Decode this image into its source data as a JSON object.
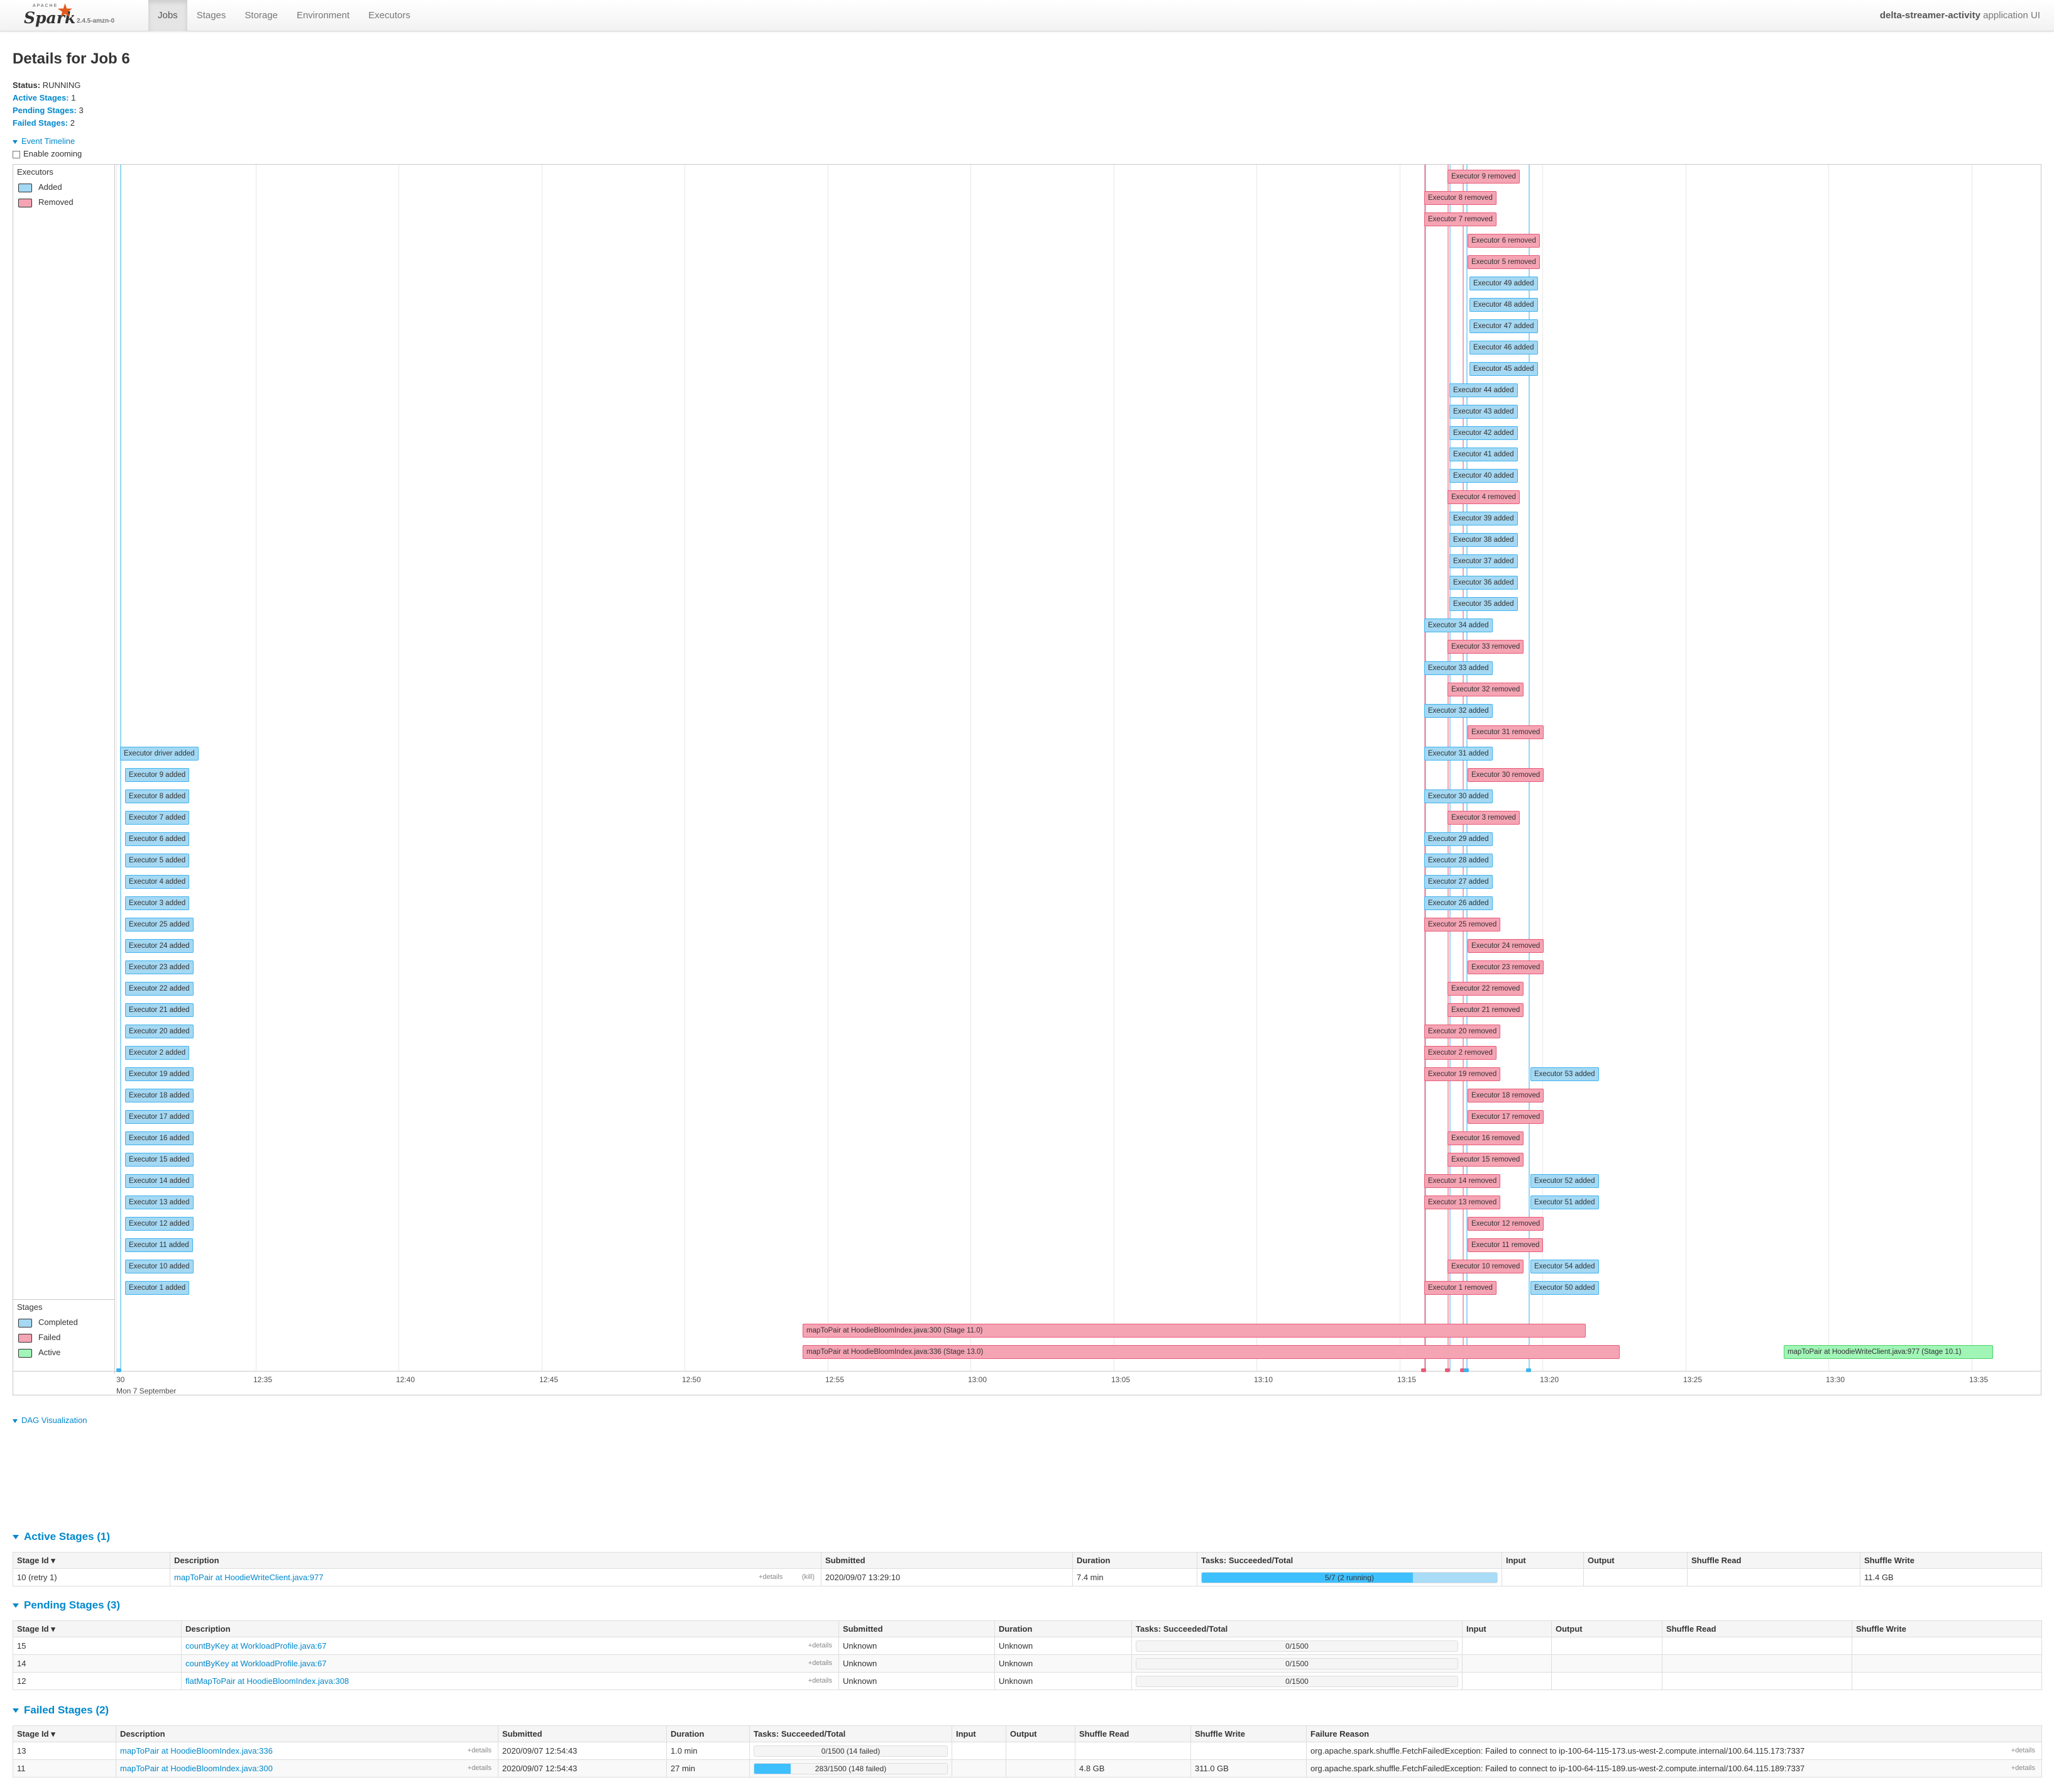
{
  "nav": {
    "brand": "Spark",
    "apache": "APACHE",
    "version": "2.4.5-amzn-0",
    "tabs": [
      "Jobs",
      "Stages",
      "Storage",
      "Environment",
      "Executors"
    ],
    "active_tab": "Jobs",
    "app_name": "delta-streamer-activity",
    "app_suffix": " application UI"
  },
  "page": {
    "title": "Details for Job 6",
    "status_label": "Status:",
    "status": "RUNNING",
    "active_label": "Active Stages:",
    "active": "1",
    "pending_label": "Pending Stages:",
    "pending": "3",
    "failed_label": "Failed Stages:",
    "failed": "2"
  },
  "timeline": {
    "toggle": "Event Timeline",
    "zoom_label": "Enable zooming",
    "executors_title": "Executors",
    "legend_added": "Added",
    "legend_removed": "Removed",
    "stages_title": "Stages",
    "legend_completed": "Completed",
    "legend_failed": "Failed",
    "legend_active": "Active",
    "ticks": [
      "30",
      "12:35",
      "12:40",
      "12:45",
      "12:50",
      "12:55",
      "13:00",
      "13:05",
      "13:10",
      "13:15",
      "13:20",
      "13:25",
      "13:30",
      "13:35"
    ],
    "day_label": "Mon 7 September",
    "events": [
      {
        "text": "Executor 9 removed",
        "type": "rem",
        "col": "c2",
        "row": 0
      },
      {
        "text": "Executor 8 removed",
        "type": "rem",
        "col": "c1",
        "row": 1
      },
      {
        "text": "Executor 7 removed",
        "type": "rem",
        "col": "c1",
        "row": 2
      },
      {
        "text": "Executor 6 removed",
        "type": "rem",
        "col": "c3",
        "row": 3
      },
      {
        "text": "Executor 5 removed",
        "type": "rem",
        "col": "c3",
        "row": 4
      },
      {
        "text": "Executor 49 added",
        "type": "add",
        "col": "c4",
        "row": 5
      },
      {
        "text": "Executor 48 added",
        "type": "add",
        "col": "c4",
        "row": 6
      },
      {
        "text": "Executor 47 added",
        "type": "add",
        "col": "c4",
        "row": 7
      },
      {
        "text": "Executor 46 added",
        "type": "add",
        "col": "c4",
        "row": 8
      },
      {
        "text": "Executor 45 added",
        "type": "add",
        "col": "c4",
        "row": 9
      },
      {
        "text": "Executor 44 added",
        "type": "add",
        "col": "c2b",
        "row": 10
      },
      {
        "text": "Executor 43 added",
        "type": "add",
        "col": "c2b",
        "row": 11
      },
      {
        "text": "Executor 42 added",
        "type": "add",
        "col": "c2b",
        "row": 12
      },
      {
        "text": "Executor 41 added",
        "type": "add",
        "col": "c2b",
        "row": 13
      },
      {
        "text": "Executor 40 added",
        "type": "add",
        "col": "c2b",
        "row": 14
      },
      {
        "text": "Executor 4 removed",
        "type": "rem",
        "col": "c2",
        "row": 15
      },
      {
        "text": "Executor 39 added",
        "type": "add",
        "col": "c2b",
        "row": 16
      },
      {
        "text": "Executor 38 added",
        "type": "add",
        "col": "c2b",
        "row": 17
      },
      {
        "text": "Executor 37 added",
        "type": "add",
        "col": "c2b",
        "row": 18
      },
      {
        "text": "Executor 36 added",
        "type": "add",
        "col": "c2b",
        "row": 19
      },
      {
        "text": "Executor 35 added",
        "type": "add",
        "col": "c2b",
        "row": 20
      },
      {
        "text": "Executor 34 added",
        "type": "add",
        "col": "c1",
        "row": 21
      },
      {
        "text": "Executor 33 removed",
        "type": "rem",
        "col": "c2",
        "row": 22
      },
      {
        "text": "Executor 33 added",
        "type": "add",
        "col": "c1",
        "row": 23
      },
      {
        "text": "Executor 32 removed",
        "type": "rem",
        "col": "c2",
        "row": 24
      },
      {
        "text": "Executor 32 added",
        "type": "add",
        "col": "c1",
        "row": 25
      },
      {
        "text": "Executor 31 removed",
        "type": "rem",
        "col": "c3",
        "row": 26
      },
      {
        "text": "Executor driver added",
        "type": "add",
        "col": "c0a",
        "row": 27
      },
      {
        "text": "Executor 31 added",
        "type": "add",
        "col": "c1",
        "row": 27
      },
      {
        "text": "Executor 9 added",
        "type": "add",
        "col": "c0",
        "row": 28
      },
      {
        "text": "Executor 30 removed",
        "type": "rem",
        "col": "c3",
        "row": 28
      },
      {
        "text": "Executor 8 added",
        "type": "add",
        "col": "c0",
        "row": 29
      },
      {
        "text": "Executor 30 added",
        "type": "add",
        "col": "c1",
        "row": 29
      },
      {
        "text": "Executor 7 added",
        "type": "add",
        "col": "c0",
        "row": 30
      },
      {
        "text": "Executor 3 removed",
        "type": "rem",
        "col": "c2",
        "row": 30
      },
      {
        "text": "Executor 6 added",
        "type": "add",
        "col": "c0",
        "row": 31
      },
      {
        "text": "Executor 29 added",
        "type": "add",
        "col": "c1",
        "row": 31
      },
      {
        "text": "Executor 5 added",
        "type": "add",
        "col": "c0",
        "row": 32
      },
      {
        "text": "Executor 28 added",
        "type": "add",
        "col": "c1",
        "row": 32
      },
      {
        "text": "Executor 4 added",
        "type": "add",
        "col": "c0",
        "row": 33
      },
      {
        "text": "Executor 27 added",
        "type": "add",
        "col": "c1",
        "row": 33
      },
      {
        "text": "Executor 3 added",
        "type": "add",
        "col": "c0",
        "row": 34
      },
      {
        "text": "Executor 26 added",
        "type": "add",
        "col": "c1",
        "row": 34
      },
      {
        "text": "Executor 25 added",
        "type": "add",
        "col": "c0",
        "row": 35
      },
      {
        "text": "Executor 25 removed",
        "type": "rem",
        "col": "c1",
        "row": 35
      },
      {
        "text": "Executor 24 added",
        "type": "add",
        "col": "c0",
        "row": 36
      },
      {
        "text": "Executor 24 removed",
        "type": "rem",
        "col": "c3",
        "row": 36
      },
      {
        "text": "Executor 23 added",
        "type": "add",
        "col": "c0",
        "row": 37
      },
      {
        "text": "Executor 23 removed",
        "type": "rem",
        "col": "c3",
        "row": 37
      },
      {
        "text": "Executor 22 added",
        "type": "add",
        "col": "c0",
        "row": 38
      },
      {
        "text": "Executor 22 removed",
        "type": "rem",
        "col": "c2",
        "row": 38
      },
      {
        "text": "Executor 21 added",
        "type": "add",
        "col": "c0",
        "row": 39
      },
      {
        "text": "Executor 21 removed",
        "type": "rem",
        "col": "c2",
        "row": 39
      },
      {
        "text": "Executor 20 added",
        "type": "add",
        "col": "c0",
        "row": 40
      },
      {
        "text": "Executor 20 removed",
        "type": "rem",
        "col": "c1",
        "row": 40
      },
      {
        "text": "Executor 2 added",
        "type": "add",
        "col": "c0",
        "row": 41
      },
      {
        "text": "Executor 2 removed",
        "type": "rem",
        "col": "c1",
        "row": 41
      },
      {
        "text": "Executor 19 added",
        "type": "add",
        "col": "c0",
        "row": 42
      },
      {
        "text": "Executor 19 removed",
        "type": "rem",
        "col": "c1",
        "row": 42
      },
      {
        "text": "Executor 53 added",
        "type": "add",
        "col": "c5",
        "row": 42
      },
      {
        "text": "Executor 18 added",
        "type": "add",
        "col": "c0",
        "row": 43
      },
      {
        "text": "Executor 18 removed",
        "type": "rem",
        "col": "c3",
        "row": 43
      },
      {
        "text": "Executor 17 added",
        "type": "add",
        "col": "c0",
        "row": 44
      },
      {
        "text": "Executor 17 removed",
        "type": "rem",
        "col": "c3",
        "row": 44
      },
      {
        "text": "Executor 16 added",
        "type": "add",
        "col": "c0",
        "row": 45
      },
      {
        "text": "Executor 16 removed",
        "type": "rem",
        "col": "c2",
        "row": 45
      },
      {
        "text": "Executor 15 added",
        "type": "add",
        "col": "c0",
        "row": 46
      },
      {
        "text": "Executor 15 removed",
        "type": "rem",
        "col": "c2",
        "row": 46
      },
      {
        "text": "Executor 14 added",
        "type": "add",
        "col": "c0",
        "row": 47
      },
      {
        "text": "Executor 14 removed",
        "type": "rem",
        "col": "c1",
        "row": 47
      },
      {
        "text": "Executor 52 added",
        "type": "add",
        "col": "c5",
        "row": 47
      },
      {
        "text": "Executor 13 added",
        "type": "add",
        "col": "c0",
        "row": 48
      },
      {
        "text": "Executor 13 removed",
        "type": "rem",
        "col": "c1",
        "row": 48
      },
      {
        "text": "Executor 51 added",
        "type": "add",
        "col": "c5",
        "row": 48
      },
      {
        "text": "Executor 12 added",
        "type": "add",
        "col": "c0",
        "row": 49
      },
      {
        "text": "Executor 12 removed",
        "type": "rem",
        "col": "c3",
        "row": 49
      },
      {
        "text": "Executor 11 added",
        "type": "add",
        "col": "c0",
        "row": 50
      },
      {
        "text": "Executor 11 removed",
        "type": "rem",
        "col": "c3",
        "row": 50
      },
      {
        "text": "Executor 10 added",
        "type": "add",
        "col": "c0",
        "row": 51
      },
      {
        "text": "Executor 10 removed",
        "type": "rem",
        "col": "c2",
        "row": 51
      },
      {
        "text": "Executor 54 added",
        "type": "add",
        "col": "c5",
        "row": 51
      },
      {
        "text": "Executor 1 added",
        "type": "add",
        "col": "c0",
        "row": 52
      },
      {
        "text": "Executor 1 removed",
        "type": "rem",
        "col": "c1",
        "row": 52
      },
      {
        "text": "Executor 50 added",
        "type": "add",
        "col": "c5",
        "row": 52
      }
    ],
    "stages": [
      {
        "text": "mapToPair at HoodieBloomIndex.java:300 (Stage 11.0)",
        "type": "rem",
        "span": "s1",
        "row": 0
      },
      {
        "text": "mapToPair at HoodieBloomIndex.java:336 (Stage 13.0)",
        "type": "rem",
        "span": "s2",
        "row": 1
      },
      {
        "text": "mapToPair at HoodieWriteClient.java:977 (Stage 10.1)",
        "type": "act",
        "span": "s3",
        "row": 1
      }
    ]
  },
  "dag_toggle": "DAG Visualization",
  "active_stages": {
    "title": "Active Stages (1)",
    "headers": [
      "Stage Id",
      "Description",
      "Submitted",
      "Duration",
      "Tasks: Succeeded/Total",
      "Input",
      "Output",
      "Shuffle Read",
      "Shuffle Write"
    ],
    "rows": [
      {
        "id": "10 (retry 1)",
        "desc": "mapToPair at HoodieWriteClient.java:977",
        "details": "+details",
        "kill": "(kill)",
        "submitted": "2020/09/07 13:29:10",
        "duration": "7.4 min",
        "tasks": "5/7 (2 running)",
        "done": 0.714,
        "running": 0.286,
        "input": "",
        "output": "",
        "sread": "",
        "swrite": "11.4 GB"
      }
    ]
  },
  "pending_stages": {
    "title": "Pending Stages (3)",
    "headers": [
      "Stage Id",
      "Description",
      "Submitted",
      "Duration",
      "Tasks: Succeeded/Total",
      "Input",
      "Output",
      "Shuffle Read",
      "Shuffle Write"
    ],
    "rows": [
      {
        "id": "15",
        "desc": "countByKey at WorkloadProfile.java:67",
        "details": "+details",
        "submitted": "Unknown",
        "duration": "Unknown",
        "tasks": "0/1500"
      },
      {
        "id": "14",
        "desc": "countByKey at WorkloadProfile.java:67",
        "details": "+details",
        "submitted": "Unknown",
        "duration": "Unknown",
        "tasks": "0/1500"
      },
      {
        "id": "12",
        "desc": "flatMapToPair at HoodieBloomIndex.java:308",
        "details": "+details",
        "submitted": "Unknown",
        "duration": "Unknown",
        "tasks": "0/1500"
      }
    ]
  },
  "failed_stages": {
    "title": "Failed Stages (2)",
    "headers": [
      "Stage Id",
      "Description",
      "Submitted",
      "Duration",
      "Tasks: Succeeded/Total",
      "Input",
      "Output",
      "Shuffle Read",
      "Shuffle Write",
      "Failure Reason"
    ],
    "rows": [
      {
        "id": "13",
        "desc": "mapToPair at HoodieBloomIndex.java:336",
        "details": "+details",
        "submitted": "2020/09/07 12:54:43",
        "duration": "1.0 min",
        "tasks": "0/1500 (14 failed)",
        "done": 0,
        "input": "",
        "output": "",
        "sread": "",
        "swrite": "",
        "reason": "org.apache.spark.shuffle.FetchFailedException: Failed to connect to ip-100-64-115-173.us-west-2.compute.internal/100.64.115.173:7337",
        "rdetails": "+details"
      },
      {
        "id": "11",
        "desc": "mapToPair at HoodieBloomIndex.java:300",
        "details": "+details",
        "submitted": "2020/09/07 12:54:43",
        "duration": "27 min",
        "tasks": "283/1500 (148 failed)",
        "done": 0.189,
        "input": "",
        "output": "",
        "sread": "4.8 GB",
        "swrite": "311.0 GB",
        "reason": "org.apache.spark.shuffle.FetchFailedException: Failed to connect to ip-100-64-115-189.us-west-2.compute.internal/100.64.115.189:7337",
        "rdetails": "+details"
      }
    ]
  },
  "colors": {
    "link": "#0088cc",
    "added": "#a4d8f3",
    "removed": "#f5a4b4",
    "active": "#a0f5b7"
  }
}
